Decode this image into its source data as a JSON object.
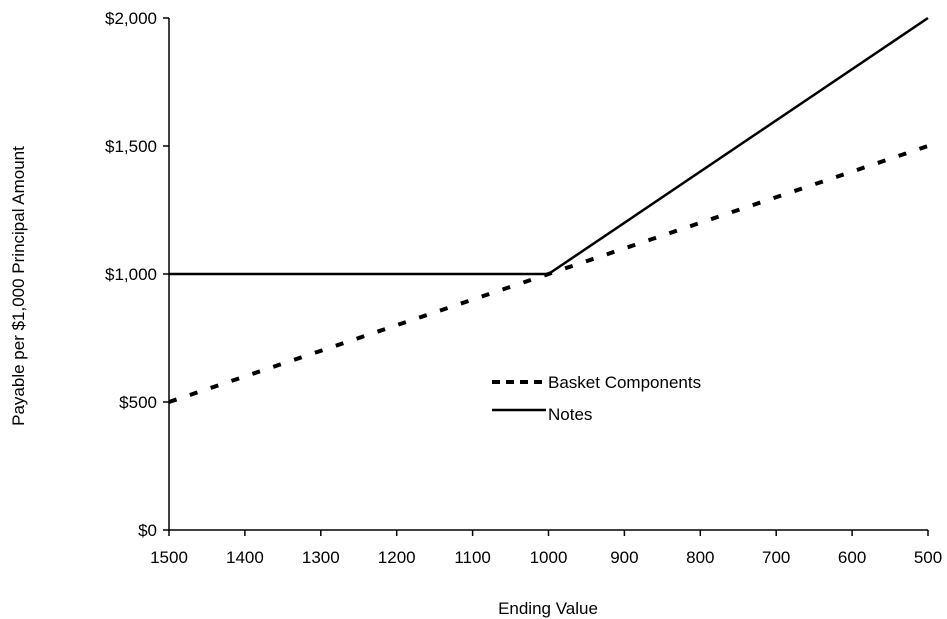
{
  "chart_data": {
    "type": "line",
    "xlabel": "Ending Value",
    "ylabel": "Payable per $1,000 Principal Amount",
    "x_ticks": [
      "1500",
      "1400",
      "1300",
      "1200",
      "1100",
      "1000",
      "900",
      "800",
      "700",
      "600",
      "500"
    ],
    "y_ticks": [
      "$0",
      "$500",
      "$1,000",
      "$1,500",
      "$2,000"
    ],
    "xlim": [
      1500,
      500
    ],
    "ylim": [
      0,
      2000
    ],
    "x_reversed": true,
    "grid": false,
    "legend_position": "center",
    "series": [
      {
        "name": "Basket Components",
        "style": "dashed",
        "color": "#000000",
        "x": [
          1500,
          1000,
          500
        ],
        "y": [
          500,
          1000,
          1500
        ]
      },
      {
        "name": "Notes",
        "style": "solid",
        "color": "#000000",
        "x": [
          1500,
          1000,
          500
        ],
        "y": [
          1000,
          1000,
          2000
        ]
      }
    ]
  }
}
